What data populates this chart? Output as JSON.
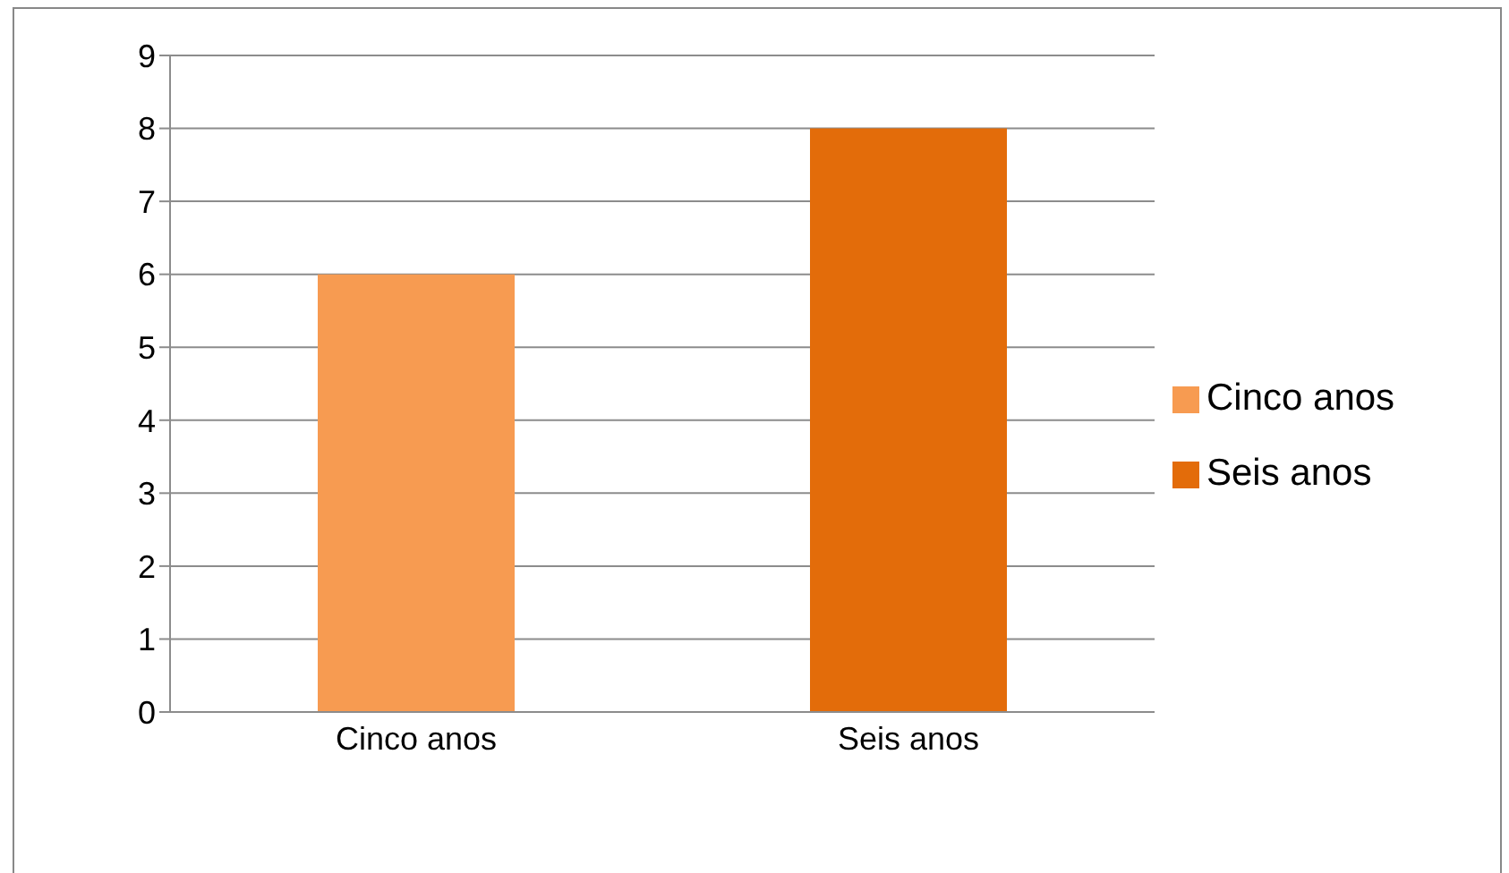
{
  "chart_data": {
    "type": "bar",
    "categories": [
      "Cinco anos",
      "Seis anos"
    ],
    "stacked": true,
    "series": [
      {
        "name": "Cinco anos",
        "color": "#f79b51",
        "values": [
          6,
          null
        ]
      },
      {
        "name": "Seis anos",
        "color": "#e36c0a",
        "values": [
          null,
          8
        ]
      }
    ],
    "ylim": [
      0,
      9
    ],
    "yticks": [
      0,
      1,
      2,
      3,
      4,
      5,
      6,
      7,
      8,
      9
    ],
    "grid": "y",
    "legend": "right"
  }
}
